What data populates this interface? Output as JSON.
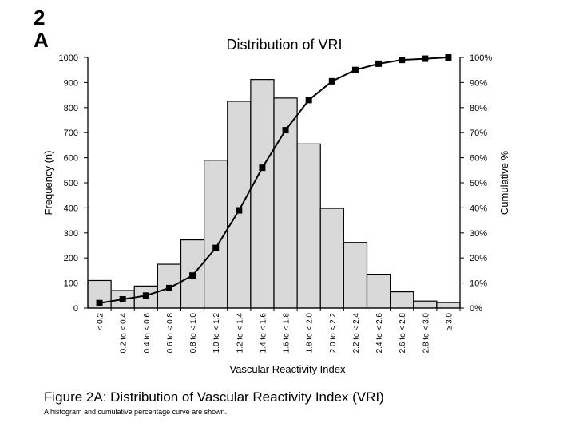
{
  "slide_label": {
    "line1": "2",
    "line2": "A"
  },
  "chart_data": {
    "type": "bar",
    "title": "Distribution of VRI",
    "xlabel": "Vascular Reactivity Index",
    "ylabel": "Frequency (n)",
    "y2label": "Cumulative %",
    "ylim": [
      0,
      1000
    ],
    "y2lim": [
      0,
      100
    ],
    "yticks": [
      "0",
      "100",
      "200",
      "300",
      "400",
      "500",
      "600",
      "700",
      "800",
      "900",
      "1000"
    ],
    "y2ticks": [
      "0%",
      "10%",
      "20%",
      "30%",
      "40%",
      "50%",
      "60%",
      "70%",
      "80%",
      "90%",
      "100%"
    ],
    "categories": [
      "< 0.2",
      "0.2 to < 0.4",
      "0.4 to < 0.6",
      "0.6 to < 0.8",
      "0.8 to < 1.0",
      "1.0 to < 1.2",
      "1.2 to < 1.4",
      "1.4 to < 1.6",
      "1.6 to < 1.8",
      "1.8 to < 2.0",
      "2.0 to < 2.2",
      "2.2 to < 2.4",
      "2.4 to < 2.6",
      "2.6 to < 2.8",
      "2.8 to < 3.0",
      "≥ 3.0"
    ],
    "series": [
      {
        "name": "Frequency",
        "type": "bar",
        "axis": "left",
        "values": [
          110,
          70,
          88,
          175,
          272,
          590,
          825,
          912,
          838,
          655,
          398,
          262,
          135,
          65,
          28,
          22
        ]
      },
      {
        "name": "Cumulative %",
        "type": "line",
        "axis": "right",
        "marker": "square",
        "values": [
          2,
          3.5,
          5,
          8,
          13,
          24,
          39,
          56,
          71,
          83,
          90.5,
          95,
          97.5,
          99,
          99.5,
          100
        ]
      }
    ],
    "grid": false,
    "legend": "none"
  },
  "caption": "Figure 2A:   Distribution of Vascular Reactivity Index (VRI)",
  "subcaption": "A histogram and cumulative percentage curve are shown.",
  "colors": {
    "bar_fill": "#d9d9d9",
    "bar_stroke": "#000000",
    "line": "#000000"
  }
}
